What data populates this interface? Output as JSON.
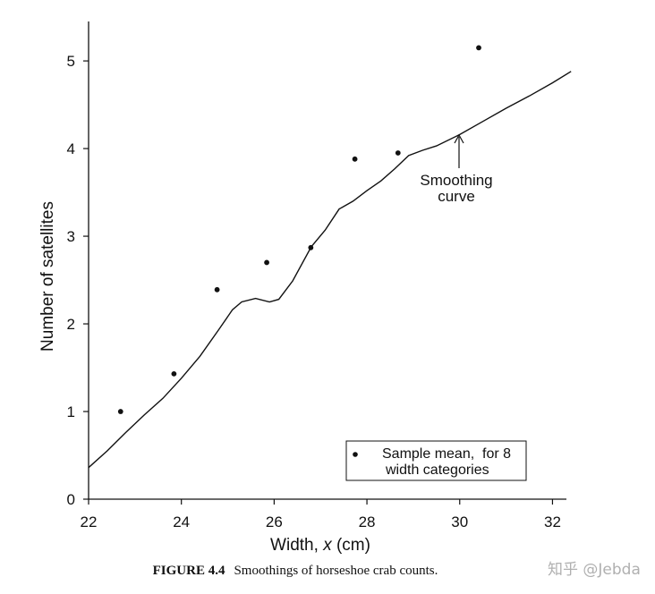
{
  "chart_data": {
    "type": "scatter",
    "xlabel_prefix": "Width,",
    "xlabel_var": "x",
    "xlabel_suffix": "(cm)",
    "ylabel": "Number of satellites",
    "xlim": [
      22,
      32.3
    ],
    "ylim": [
      0,
      5.45
    ],
    "xticks": [
      22,
      24,
      26,
      28,
      30,
      32
    ],
    "yticks": [
      0,
      1,
      2,
      3,
      4,
      5
    ],
    "grid": false,
    "series": [
      {
        "name": "Sample mean, for 8 width categories",
        "kind": "points",
        "x": [
          22.69,
          23.84,
          24.77,
          25.84,
          26.79,
          27.74,
          28.67,
          30.41
        ],
        "y": [
          1.0,
          1.43,
          2.39,
          2.7,
          2.87,
          3.88,
          3.95,
          5.15
        ]
      },
      {
        "name": "Smoothing curve",
        "kind": "line",
        "x": [
          22.0,
          22.4,
          22.8,
          23.2,
          23.6,
          24.0,
          24.4,
          24.8,
          25.1,
          25.3,
          25.6,
          25.9,
          26.1,
          26.4,
          26.8,
          27.1,
          27.4,
          27.7,
          28.0,
          28.3,
          28.6,
          28.9,
          29.2,
          29.5,
          30.0,
          30.5,
          31.0,
          31.5,
          32.0,
          32.4
        ],
        "y": [
          0.36,
          0.55,
          0.76,
          0.96,
          1.15,
          1.38,
          1.63,
          1.93,
          2.16,
          2.25,
          2.29,
          2.25,
          2.28,
          2.49,
          2.88,
          3.07,
          3.31,
          3.4,
          3.52,
          3.63,
          3.77,
          3.92,
          3.98,
          4.03,
          4.16,
          4.31,
          4.46,
          4.6,
          4.75,
          4.88
        ]
      }
    ],
    "legend": {
      "position": "bottom-right",
      "line1": "Sample mean,  for 8",
      "line2": "width categories"
    },
    "annotation": {
      "line1": "Smoothing",
      "line2": "curve",
      "target_x": 30.0,
      "target_y": 4.16
    }
  },
  "caption": {
    "label": "FIGURE 4.4",
    "text": "Smoothings of horseshoe crab counts."
  },
  "watermark": "知乎 @Jebda"
}
